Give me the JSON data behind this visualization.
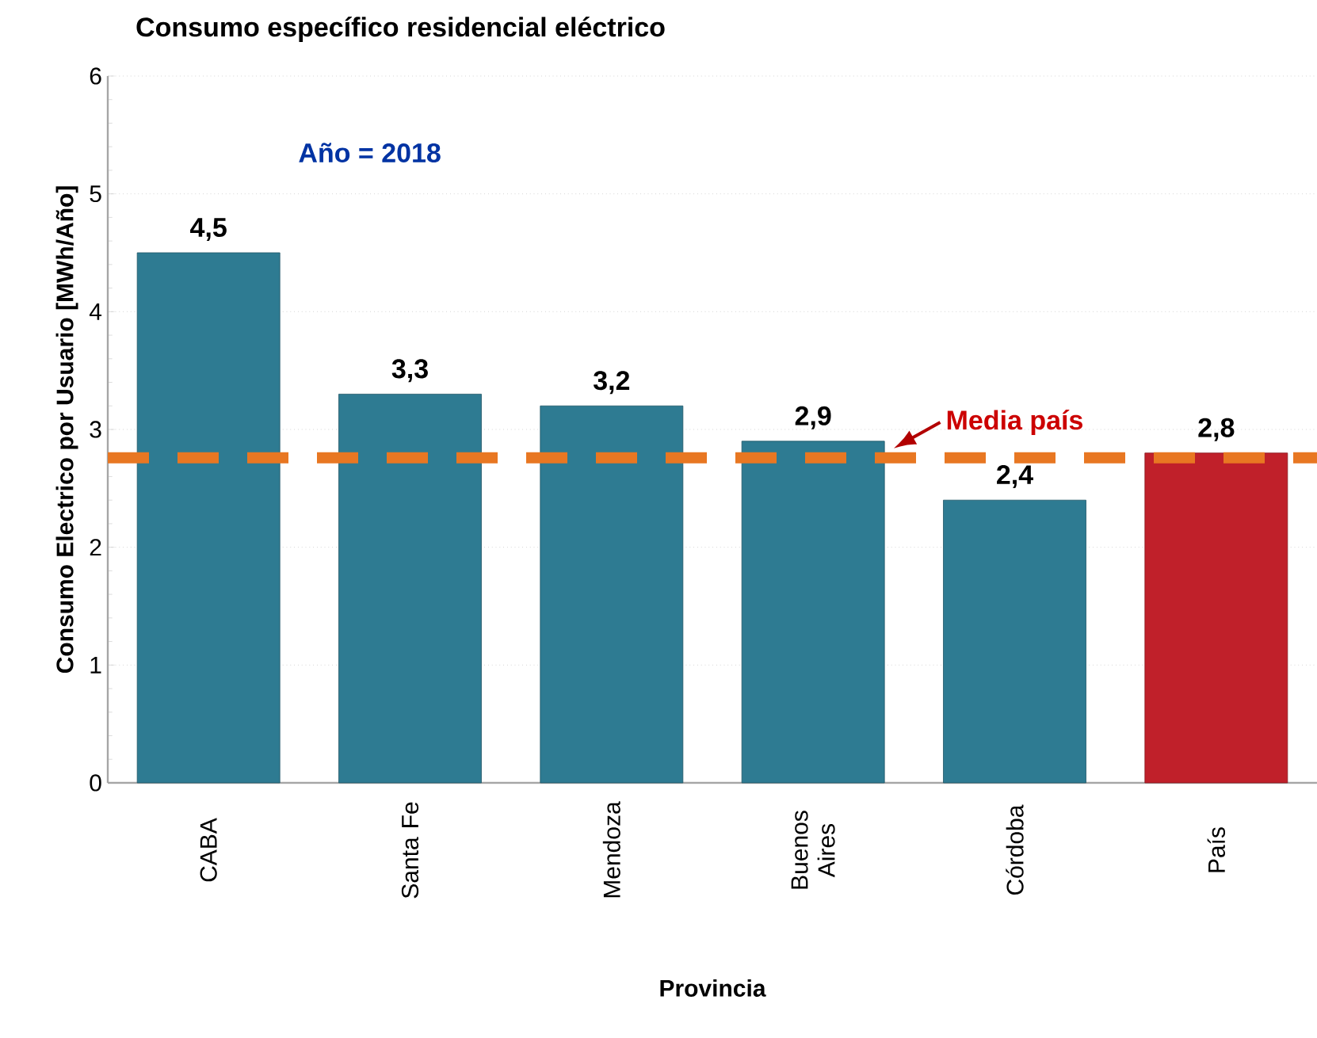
{
  "chart_data": {
    "type": "bar",
    "title": "Consumo específico residencial eléctrico",
    "xlabel": "Provincia",
    "ylabel": "Consumo Electrico por Usuario [MWh/Año]",
    "categories": [
      "CABA",
      "Santa Fe",
      "Mendoza",
      "Buenos Aires",
      "Córdoba",
      "País"
    ],
    "values": [
      4.5,
      3.3,
      3.2,
      2.9,
      2.4,
      2.8
    ],
    "value_labels": [
      "4,5",
      "3,3",
      "3,2",
      "2,9",
      "2,4",
      "2,8"
    ],
    "colors": [
      "#2e7b92",
      "#2e7b92",
      "#2e7b92",
      "#2e7b92",
      "#2e7b92",
      "#c0202a"
    ],
    "ylim": [
      0,
      6
    ],
    "yticks": [
      0,
      1,
      2,
      3,
      4,
      5,
      6
    ],
    "grid": "y",
    "ref_lines": [
      {
        "axis": "y",
        "value": 2.76,
        "label": "Media país",
        "color": "#e87722",
        "line_style": "dashed"
      }
    ],
    "annotations": [
      "Año = 2018"
    ]
  }
}
